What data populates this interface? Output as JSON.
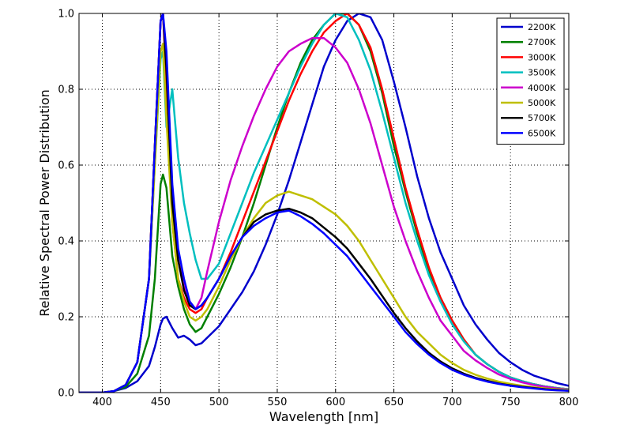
{
  "chart_data": {
    "type": "line",
    "title": "",
    "xlabel": "Wavelength [nm]",
    "ylabel": "Relative Spectral Power Distribution",
    "xlim": [
      380,
      800
    ],
    "ylim": [
      0.0,
      1.0
    ],
    "xticks": [
      "400",
      "450",
      "500",
      "550",
      "600",
      "650",
      "700",
      "750",
      "800"
    ],
    "yticks": [
      "0.0",
      "0.2",
      "0.4",
      "0.6",
      "0.8",
      "1.0"
    ],
    "xtick_values": [
      400,
      450,
      500,
      550,
      600,
      650,
      700,
      750,
      800
    ],
    "ytick_values": [
      0.0,
      0.2,
      0.4,
      0.6,
      0.8,
      1.0
    ],
    "grid": true,
    "legend_position": "top-right",
    "x": [
      380,
      400,
      410,
      420,
      430,
      440,
      445,
      450,
      452,
      455,
      460,
      465,
      470,
      475,
      480,
      485,
      490,
      500,
      510,
      520,
      530,
      540,
      550,
      560,
      570,
      580,
      590,
      600,
      610,
      620,
      630,
      640,
      650,
      660,
      670,
      680,
      690,
      700,
      710,
      720,
      730,
      740,
      750,
      760,
      770,
      780,
      790,
      800
    ],
    "series": [
      {
        "name": "2200K",
        "color": "#0000cc",
        "values": [
          0.0,
          0.0,
          0.004,
          0.012,
          0.03,
          0.07,
          0.12,
          0.18,
          0.195,
          0.2,
          0.17,
          0.145,
          0.15,
          0.14,
          0.125,
          0.13,
          0.145,
          0.175,
          0.22,
          0.265,
          0.32,
          0.39,
          0.47,
          0.56,
          0.66,
          0.76,
          0.86,
          0.93,
          0.98,
          1.0,
          0.99,
          0.93,
          0.82,
          0.7,
          0.57,
          0.46,
          0.37,
          0.3,
          0.23,
          0.18,
          0.14,
          0.105,
          0.08,
          0.06,
          0.045,
          0.035,
          0.025,
          0.018
        ]
      },
      {
        "name": "2700K",
        "color": "#008000",
        "values": [
          0.0,
          0.0,
          0.004,
          0.015,
          0.05,
          0.15,
          0.3,
          0.55,
          0.575,
          0.54,
          0.36,
          0.28,
          0.22,
          0.18,
          0.16,
          0.17,
          0.2,
          0.26,
          0.33,
          0.41,
          0.5,
          0.6,
          0.7,
          0.79,
          0.87,
          0.93,
          0.97,
          1.0,
          1.0,
          0.97,
          0.9,
          0.79,
          0.65,
          0.53,
          0.42,
          0.32,
          0.25,
          0.19,
          0.14,
          0.1,
          0.075,
          0.055,
          0.04,
          0.03,
          0.022,
          0.016,
          0.012,
          0.009
        ]
      },
      {
        "name": "3000K",
        "color": "#ff0000",
        "values": [
          0.0,
          0.0,
          0.004,
          0.02,
          0.08,
          0.3,
          0.65,
          0.98,
          1.0,
          0.82,
          0.45,
          0.3,
          0.25,
          0.22,
          0.21,
          0.22,
          0.25,
          0.3,
          0.37,
          0.45,
          0.53,
          0.61,
          0.69,
          0.77,
          0.84,
          0.9,
          0.95,
          0.98,
          1.0,
          0.97,
          0.91,
          0.8,
          0.67,
          0.54,
          0.43,
          0.33,
          0.25,
          0.19,
          0.14,
          0.1,
          0.075,
          0.055,
          0.04,
          0.03,
          0.022,
          0.016,
          0.012,
          0.009
        ]
      },
      {
        "name": "3500K",
        "color": "#00bfbf",
        "values": [
          0.0,
          0.0,
          0.004,
          0.02,
          0.08,
          0.3,
          0.6,
          0.88,
          0.9,
          0.7,
          0.8,
          0.62,
          0.5,
          0.42,
          0.35,
          0.3,
          0.3,
          0.34,
          0.42,
          0.5,
          0.58,
          0.65,
          0.72,
          0.79,
          0.86,
          0.92,
          0.97,
          1.0,
          0.99,
          0.93,
          0.85,
          0.74,
          0.62,
          0.5,
          0.4,
          0.31,
          0.24,
          0.18,
          0.135,
          0.1,
          0.075,
          0.055,
          0.04,
          0.03,
          0.022,
          0.016,
          0.012,
          0.009
        ]
      },
      {
        "name": "4000K",
        "color": "#cc00cc",
        "values": [
          0.0,
          0.0,
          0.004,
          0.02,
          0.08,
          0.3,
          0.65,
          0.98,
          1.0,
          0.85,
          0.5,
          0.35,
          0.28,
          0.24,
          0.22,
          0.25,
          0.32,
          0.45,
          0.56,
          0.65,
          0.73,
          0.8,
          0.86,
          0.9,
          0.92,
          0.935,
          0.935,
          0.91,
          0.87,
          0.8,
          0.71,
          0.6,
          0.49,
          0.4,
          0.32,
          0.25,
          0.19,
          0.15,
          0.11,
          0.085,
          0.065,
          0.048,
          0.036,
          0.027,
          0.02,
          0.015,
          0.011,
          0.008
        ]
      },
      {
        "name": "5000K",
        "color": "#bfbf00",
        "values": [
          0.0,
          0.0,
          0.004,
          0.02,
          0.08,
          0.3,
          0.6,
          0.9,
          0.92,
          0.72,
          0.45,
          0.3,
          0.24,
          0.2,
          0.19,
          0.2,
          0.22,
          0.28,
          0.35,
          0.41,
          0.46,
          0.5,
          0.52,
          0.53,
          0.52,
          0.51,
          0.49,
          0.47,
          0.44,
          0.4,
          0.35,
          0.3,
          0.25,
          0.2,
          0.16,
          0.13,
          0.1,
          0.078,
          0.06,
          0.047,
          0.037,
          0.029,
          0.023,
          0.018,
          0.014,
          0.011,
          0.009,
          0.007
        ]
      },
      {
        "name": "5700K",
        "color": "#000000",
        "values": [
          0.0,
          0.0,
          0.004,
          0.02,
          0.08,
          0.3,
          0.65,
          0.98,
          1.0,
          0.85,
          0.5,
          0.35,
          0.27,
          0.23,
          0.22,
          0.23,
          0.25,
          0.3,
          0.36,
          0.41,
          0.45,
          0.47,
          0.48,
          0.485,
          0.475,
          0.46,
          0.435,
          0.41,
          0.38,
          0.34,
          0.3,
          0.255,
          0.21,
          0.17,
          0.135,
          0.105,
          0.082,
          0.064,
          0.05,
          0.039,
          0.031,
          0.024,
          0.019,
          0.015,
          0.012,
          0.009,
          0.007,
          0.005
        ]
      },
      {
        "name": "6500K",
        "color": "#0000ff",
        "values": [
          0.0,
          0.0,
          0.004,
          0.02,
          0.08,
          0.3,
          0.65,
          0.98,
          1.0,
          0.9,
          0.55,
          0.38,
          0.3,
          0.24,
          0.22,
          0.23,
          0.25,
          0.3,
          0.36,
          0.41,
          0.44,
          0.46,
          0.475,
          0.48,
          0.465,
          0.445,
          0.42,
          0.39,
          0.36,
          0.32,
          0.28,
          0.24,
          0.2,
          0.16,
          0.128,
          0.1,
          0.078,
          0.06,
          0.047,
          0.037,
          0.029,
          0.023,
          0.018,
          0.014,
          0.011,
          0.008,
          0.006,
          0.005
        ]
      }
    ]
  }
}
